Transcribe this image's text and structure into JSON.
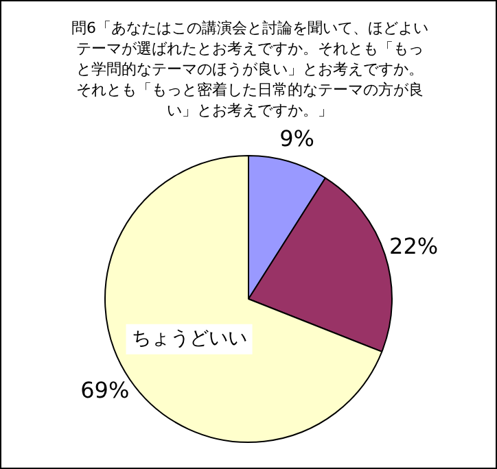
{
  "chart_data": {
    "type": "pie",
    "title": "問6「あなたはこの講演会と討論を聞いて、ほどよいテーマが選ばれたとお考えですか。それとも「もっと学問的なテーマのほうが良い」とお考えですか。それとも「もっと密着した日常的なテーマの方が良い」とお考えですか。」",
    "categories": [
      null,
      null,
      "ちょうどいい"
    ],
    "values": [
      9,
      22,
      69
    ],
    "colors": [
      "#9999ff",
      "#993366",
      "#ffffcc"
    ],
    "value_labels": [
      "9%",
      "22%",
      "69%"
    ],
    "legend": false
  }
}
